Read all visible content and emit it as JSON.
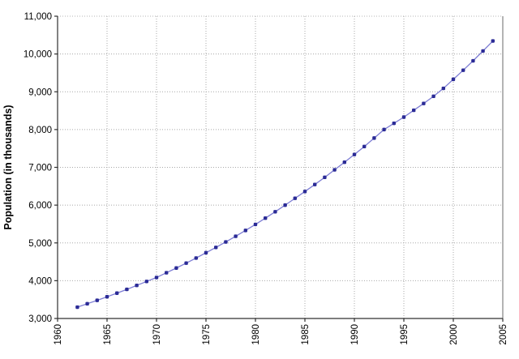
{
  "figure": {
    "background": "#ffffff"
  },
  "chart_data": {
    "type": "line",
    "title": "",
    "xlabel": "",
    "ylabel": "Population (in thousands)",
    "xlim": [
      1960,
      2005
    ],
    "ylim": [
      3000,
      11000
    ],
    "grid": true,
    "legend_position": "none",
    "x_tick_labels": [
      "1960",
      "1965",
      "1970",
      "1975",
      "1980",
      "1985",
      "1990",
      "1995",
      "2000",
      "2005"
    ],
    "x_tick_values": [
      1960,
      1965,
      1970,
      1975,
      1980,
      1985,
      1990,
      1995,
      2000,
      2005
    ],
    "y_tick_labels": [
      "3,000",
      "4,000",
      "5,000",
      "6,000",
      "7,000",
      "8,000",
      "9,000",
      "10,000",
      "11,000"
    ],
    "y_tick_values": [
      3000,
      4000,
      5000,
      6000,
      7000,
      8000,
      9000,
      10000,
      11000
    ],
    "series": [
      {
        "name": "Population",
        "x": [
          1962,
          1963,
          1964,
          1965,
          1966,
          1967,
          1968,
          1969,
          1970,
          1971,
          1972,
          1973,
          1974,
          1975,
          1976,
          1977,
          1978,
          1979,
          1980,
          1981,
          1982,
          1983,
          1984,
          1985,
          1986,
          1987,
          1988,
          1989,
          1990,
          1991,
          1992,
          1993,
          1994,
          1995,
          1996,
          1997,
          1998,
          1999,
          2000,
          2001,
          2002,
          2003,
          2004
        ],
        "values": [
          3300,
          3390,
          3480,
          3575,
          3670,
          3770,
          3875,
          3980,
          4085,
          4210,
          4335,
          4465,
          4600,
          4740,
          4880,
          5025,
          5175,
          5330,
          5490,
          5655,
          5825,
          6000,
          6180,
          6360,
          6545,
          6735,
          6935,
          7135,
          7340,
          7550,
          7775,
          8000,
          8165,
          8330,
          8510,
          8690,
          8880,
          9090,
          9330,
          9570,
          9820,
          10080,
          10345
        ]
      }
    ],
    "colors": {
      "line": "#7d7dd4",
      "marker": "#2b2b96",
      "grid": "#a8a8a8",
      "axis": "#303030",
      "frame_right": "#6a6a6a",
      "frame_top": "#b5b5b5",
      "text": "#000000",
      "background": "#ffffff"
    }
  }
}
